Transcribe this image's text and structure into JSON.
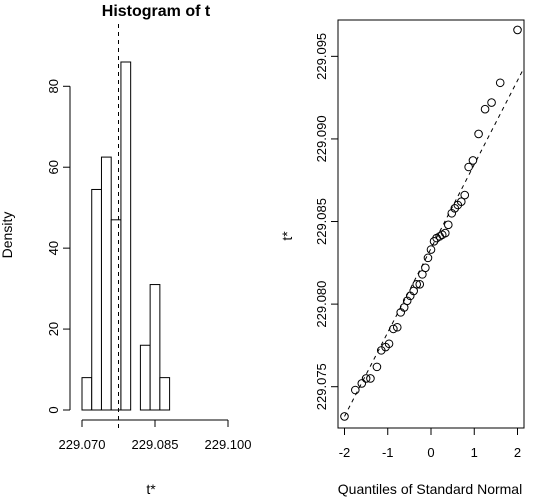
{
  "chart_data": [
    {
      "type": "bar",
      "title": "Histogram of t",
      "xlabel": "t*",
      "ylabel": "Density",
      "bins": [
        {
          "x0": 229.07,
          "x1": 229.072,
          "density": 8
        },
        {
          "x0": 229.072,
          "x1": 229.074,
          "density": 54.5
        },
        {
          "x0": 229.074,
          "x1": 229.076,
          "density": 62.5
        },
        {
          "x0": 229.076,
          "x1": 229.078,
          "density": 47
        },
        {
          "x0": 229.078,
          "x1": 229.08,
          "density": 86
        },
        {
          "x0": 229.08,
          "x1": 229.082,
          "density": 0
        },
        {
          "x0": 229.082,
          "x1": 229.084,
          "density": 16
        },
        {
          "x0": 229.084,
          "x1": 229.086,
          "density": 31
        },
        {
          "x0": 229.086,
          "x1": 229.088,
          "density": 8
        }
      ],
      "reference_line_x": 229.0775,
      "xlim": [
        229.07,
        229.1
      ],
      "ylim": [
        0,
        86
      ],
      "xticks": [
        229.07,
        229.085,
        229.1
      ],
      "xtick_labels": [
        "229.070",
        "229.085",
        "229.100"
      ],
      "yticks": [
        0,
        20,
        40,
        60,
        80
      ],
      "ytick_labels": [
        "0",
        "20",
        "40",
        "60",
        "80"
      ],
      "grid": false
    },
    {
      "type": "scatter",
      "title": "",
      "xlabel": "Quantiles of Standard Normal",
      "ylabel": "t*",
      "points": [
        {
          "x": -2.0,
          "y": 229.0732
        },
        {
          "x": -1.75,
          "y": 229.0748
        },
        {
          "x": -1.6,
          "y": 229.0752
        },
        {
          "x": -1.5,
          "y": 229.0755
        },
        {
          "x": -1.4,
          "y": 229.0755
        },
        {
          "x": -1.25,
          "y": 229.0762
        },
        {
          "x": -1.15,
          "y": 229.0772
        },
        {
          "x": -1.05,
          "y": 229.0774
        },
        {
          "x": -0.97,
          "y": 229.0776
        },
        {
          "x": -0.87,
          "y": 229.0785
        },
        {
          "x": -0.78,
          "y": 229.0786
        },
        {
          "x": -0.7,
          "y": 229.0795
        },
        {
          "x": -0.62,
          "y": 229.0798
        },
        {
          "x": -0.55,
          "y": 229.0802
        },
        {
          "x": -0.48,
          "y": 229.0805
        },
        {
          "x": -0.4,
          "y": 229.0808
        },
        {
          "x": -0.33,
          "y": 229.0812
        },
        {
          "x": -0.26,
          "y": 229.0812
        },
        {
          "x": -0.2,
          "y": 229.0818
        },
        {
          "x": -0.13,
          "y": 229.0822
        },
        {
          "x": -0.07,
          "y": 229.0828
        },
        {
          "x": 0.0,
          "y": 229.0833
        },
        {
          "x": 0.07,
          "y": 229.0838
        },
        {
          "x": 0.13,
          "y": 229.084
        },
        {
          "x": 0.2,
          "y": 229.0841
        },
        {
          "x": 0.26,
          "y": 229.0842
        },
        {
          "x": 0.33,
          "y": 229.0843
        },
        {
          "x": 0.4,
          "y": 229.0848
        },
        {
          "x": 0.48,
          "y": 229.0855
        },
        {
          "x": 0.55,
          "y": 229.0858
        },
        {
          "x": 0.62,
          "y": 229.086
        },
        {
          "x": 0.7,
          "y": 229.0862
        },
        {
          "x": 0.78,
          "y": 229.0866
        },
        {
          "x": 0.87,
          "y": 229.0883
        },
        {
          "x": 0.97,
          "y": 229.0887
        },
        {
          "x": 1.1,
          "y": 229.0903
        },
        {
          "x": 1.25,
          "y": 229.0918
        },
        {
          "x": 1.4,
          "y": 229.0922
        },
        {
          "x": 1.6,
          "y": 229.0934
        },
        {
          "x": 2.0,
          "y": 229.0966
        }
      ],
      "reference_line": [
        {
          "x": -2.0,
          "y": 229.0732
        },
        {
          "x": 2.15,
          "y": 229.0943
        }
      ],
      "xlim": [
        -2.15,
        2.15
      ],
      "ylim": [
        229.0725,
        229.0972
      ],
      "xticks": [
        -2,
        -1,
        0,
        1,
        2
      ],
      "xtick_labels": [
        "-2",
        "-1",
        "0",
        "1",
        "2"
      ],
      "yticks": [
        229.075,
        229.08,
        229.085,
        229.09,
        229.095
      ],
      "ytick_labels": [
        "229.075",
        "229.080",
        "229.085",
        "229.090",
        "229.095"
      ],
      "grid": false
    }
  ]
}
